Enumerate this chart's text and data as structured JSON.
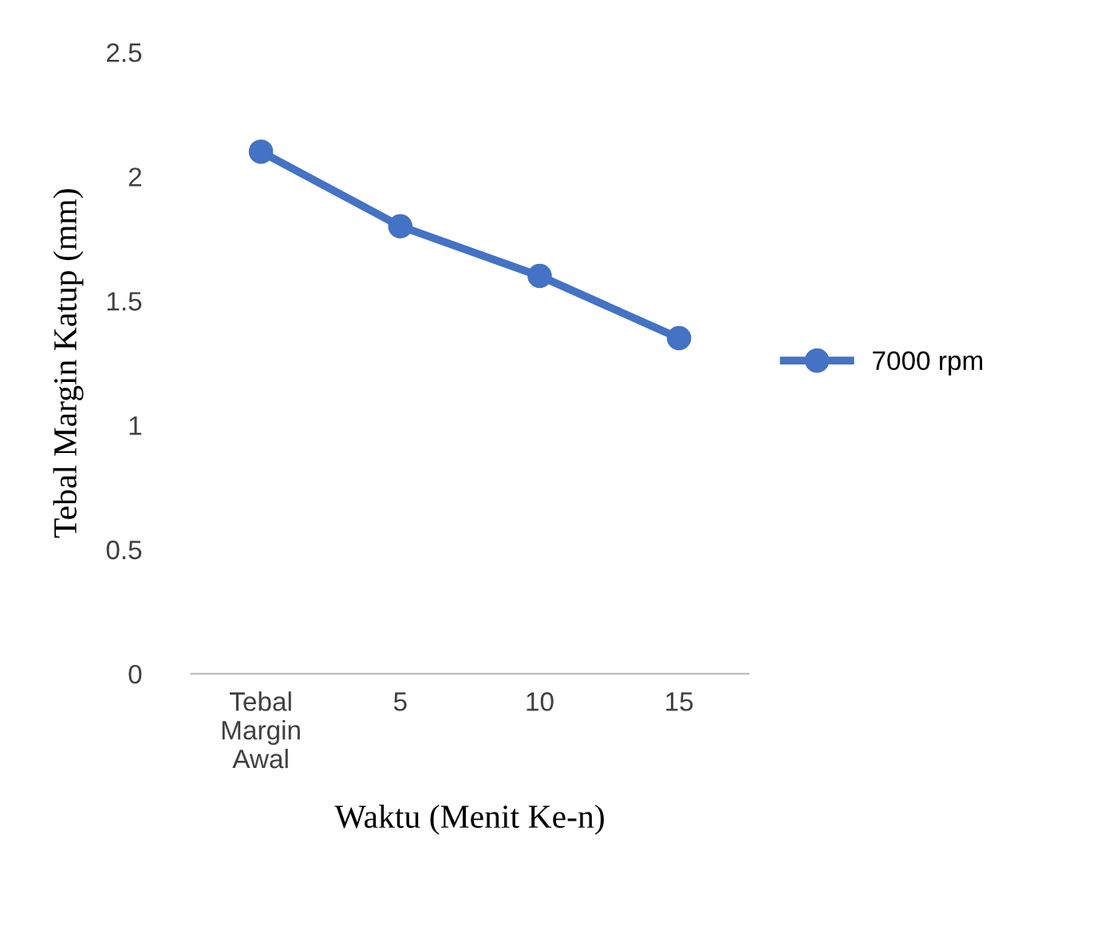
{
  "chart_data": {
    "type": "line",
    "xlabel": "Waktu (Menit Ke-n)",
    "ylabel": "Tebal Margin Katup (mm)",
    "categories": [
      "Tebal Margin Awal",
      "5",
      "10",
      "15"
    ],
    "series": [
      {
        "name": "7000 rpm",
        "color": "#4472c4",
        "values": [
          2.1,
          1.8,
          1.6,
          1.35
        ]
      }
    ],
    "ylim": [
      0,
      2.5
    ],
    "yticks": [
      0,
      0.5,
      1,
      1.5,
      2,
      2.5
    ],
    "grid": false,
    "legend": "right",
    "marker": "circle",
    "line_style": "solid"
  }
}
